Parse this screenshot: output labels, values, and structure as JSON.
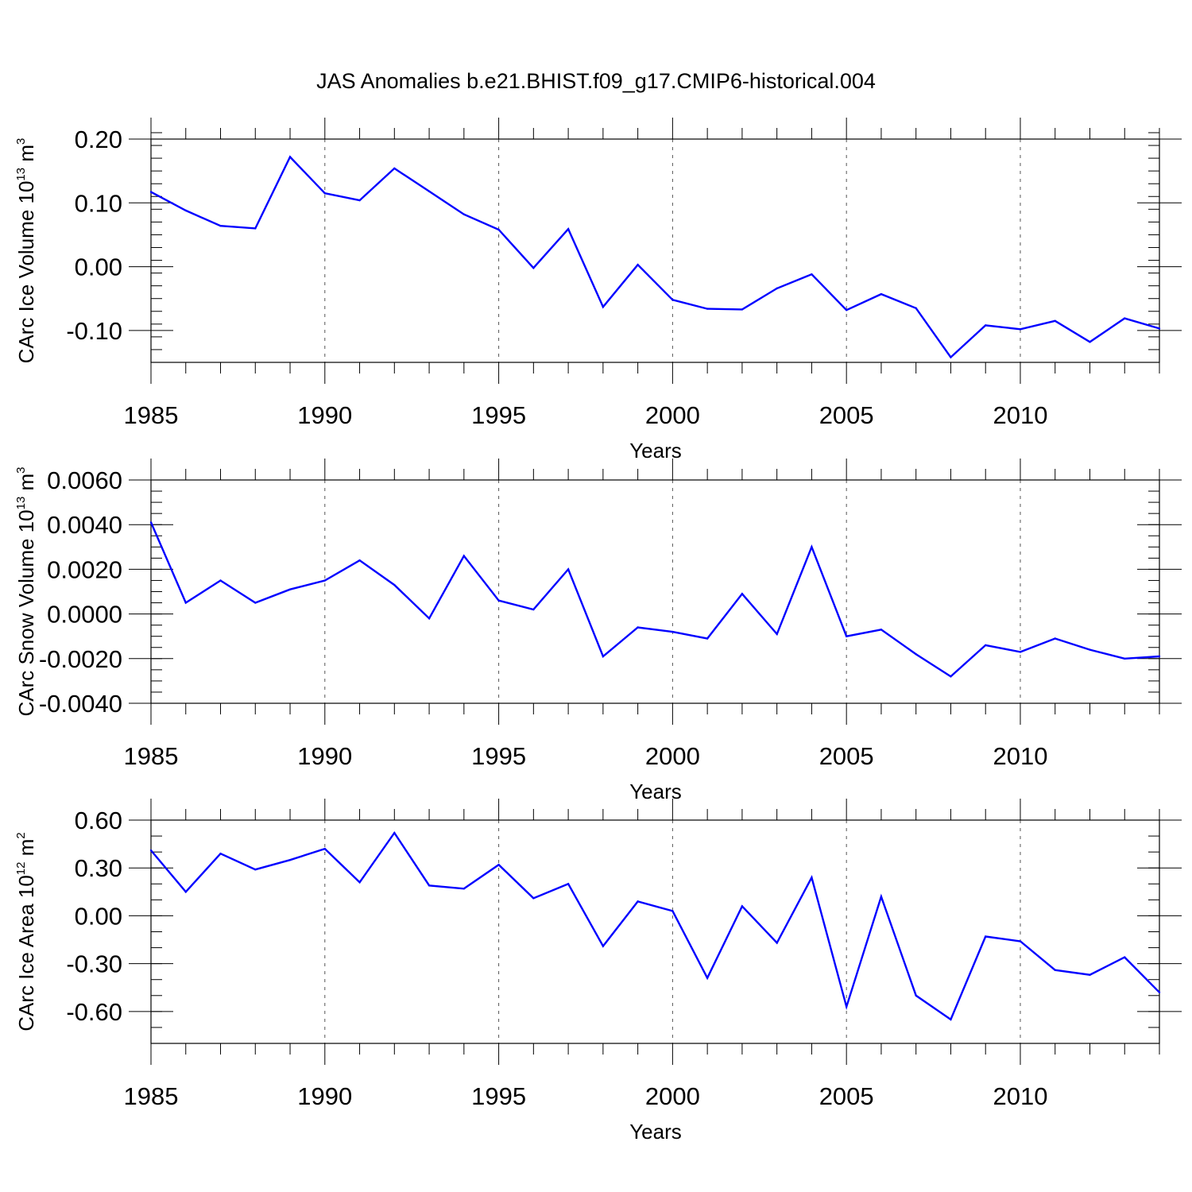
{
  "title": "JAS Anomalies b.e21.BHIST.f09_g17.CMIP6-historical.004",
  "line_color": "#0000ff",
  "chart_data": [
    {
      "type": "line",
      "ylabel": {
        "text": "CArc Ice Volume 10",
        "exp": "13",
        "unit": " m",
        "unit_exp": "3"
      },
      "xlabel": "Years",
      "xlim": [
        1985,
        2014
      ],
      "ylim": [
        -0.15,
        0.2
      ],
      "x_ticks": [
        1985,
        1990,
        1995,
        2000,
        2005,
        2010
      ],
      "x_tick_labels": [
        "1985",
        "1990",
        "1995",
        "2000",
        "2005",
        "2010"
      ],
      "y_ticks": [
        0.2,
        0.1,
        0.0,
        -0.1
      ],
      "y_tick_labels": [
        "0.20",
        "0.10",
        "0.00",
        "-0.10"
      ],
      "y_minor_step": 0.02,
      "grid": "vertical dashed at major x ticks",
      "x": [
        1985,
        1986,
        1987,
        1988,
        1989,
        1990,
        1991,
        1992,
        1993,
        1994,
        1995,
        1996,
        1997,
        1998,
        1999,
        2000,
        2001,
        2002,
        2003,
        2004,
        2005,
        2006,
        2007,
        2008,
        2009,
        2010,
        2011,
        2012,
        2013,
        2014
      ],
      "values": [
        0.117,
        0.088,
        0.064,
        0.06,
        0.172,
        0.115,
        0.104,
        0.154,
        0.118,
        0.082,
        0.058,
        -0.002,
        0.059,
        -0.063,
        0.003,
        -0.052,
        -0.066,
        -0.067,
        -0.034,
        -0.012,
        -0.068,
        -0.043,
        -0.065,
        -0.142,
        -0.092,
        -0.098,
        -0.085,
        -0.118,
        -0.081,
        -0.097
      ]
    },
    {
      "type": "line",
      "ylabel": {
        "text": "CArc Snow Volume 10",
        "exp": "13",
        "unit": " m",
        "unit_exp": "3"
      },
      "xlabel": "Years",
      "xlim": [
        1985,
        2014
      ],
      "ylim": [
        -0.004,
        0.006
      ],
      "x_ticks": [
        1985,
        1990,
        1995,
        2000,
        2005,
        2010
      ],
      "x_tick_labels": [
        "1985",
        "1990",
        "1995",
        "2000",
        "2005",
        "2010"
      ],
      "y_ticks": [
        0.006,
        0.004,
        0.002,
        0.0,
        -0.002,
        -0.004
      ],
      "y_tick_labels": [
        "0.0060",
        "0.0040",
        "0.0020",
        "0.0000",
        "-0.0020",
        "-0.0040"
      ],
      "y_minor_step": 0.0005,
      "grid": "vertical dashed at major x ticks",
      "x": [
        1985,
        1986,
        1987,
        1988,
        1989,
        1990,
        1991,
        1992,
        1993,
        1994,
        1995,
        1996,
        1997,
        1998,
        1999,
        2000,
        2001,
        2002,
        2003,
        2004,
        2005,
        2006,
        2007,
        2008,
        2009,
        2010,
        2011,
        2012,
        2013,
        2014
      ],
      "values": [
        0.0041,
        0.0005,
        0.0015,
        0.0005,
        0.0011,
        0.0015,
        0.0024,
        0.0013,
        -0.0002,
        0.0026,
        0.0006,
        0.0002,
        0.002,
        -0.0019,
        -0.0006,
        -0.0008,
        -0.0011,
        0.0009,
        -0.0009,
        0.003,
        -0.001,
        -0.0007,
        -0.0018,
        -0.0028,
        -0.0014,
        -0.0017,
        -0.0011,
        -0.0016,
        -0.002,
        -0.0019
      ]
    },
    {
      "type": "line",
      "ylabel": {
        "text": "CArc Ice Area 10",
        "exp": "12",
        "unit": " m",
        "unit_exp": "2"
      },
      "xlabel": "Years",
      "xlim": [
        1985,
        2014
      ],
      "ylim": [
        -0.8,
        0.6
      ],
      "x_ticks": [
        1985,
        1990,
        1995,
        2000,
        2005,
        2010
      ],
      "x_tick_labels": [
        "1985",
        "1990",
        "1995",
        "2000",
        "2005",
        "2010"
      ],
      "y_ticks": [
        0.6,
        0.3,
        0.0,
        -0.3,
        -0.6
      ],
      "y_tick_labels": [
        "0.60",
        "0.30",
        "0.00",
        "-0.30",
        "-0.60"
      ],
      "y_minor_step": 0.1,
      "grid": "vertical dashed at major x ticks",
      "x": [
        1985,
        1986,
        1987,
        1988,
        1989,
        1990,
        1991,
        1992,
        1993,
        1994,
        1995,
        1996,
        1997,
        1998,
        1999,
        2000,
        2001,
        2002,
        2003,
        2004,
        2005,
        2006,
        2007,
        2008,
        2009,
        2010,
        2011,
        2012,
        2013,
        2014
      ],
      "values": [
        0.41,
        0.15,
        0.39,
        0.29,
        0.35,
        0.42,
        0.21,
        0.52,
        0.19,
        0.17,
        0.32,
        0.11,
        0.2,
        -0.19,
        0.09,
        0.03,
        -0.39,
        0.06,
        -0.17,
        0.24,
        -0.57,
        0.12,
        -0.5,
        -0.65,
        -0.13,
        -0.16,
        -0.34,
        -0.37,
        -0.26,
        -0.48
      ]
    }
  ]
}
